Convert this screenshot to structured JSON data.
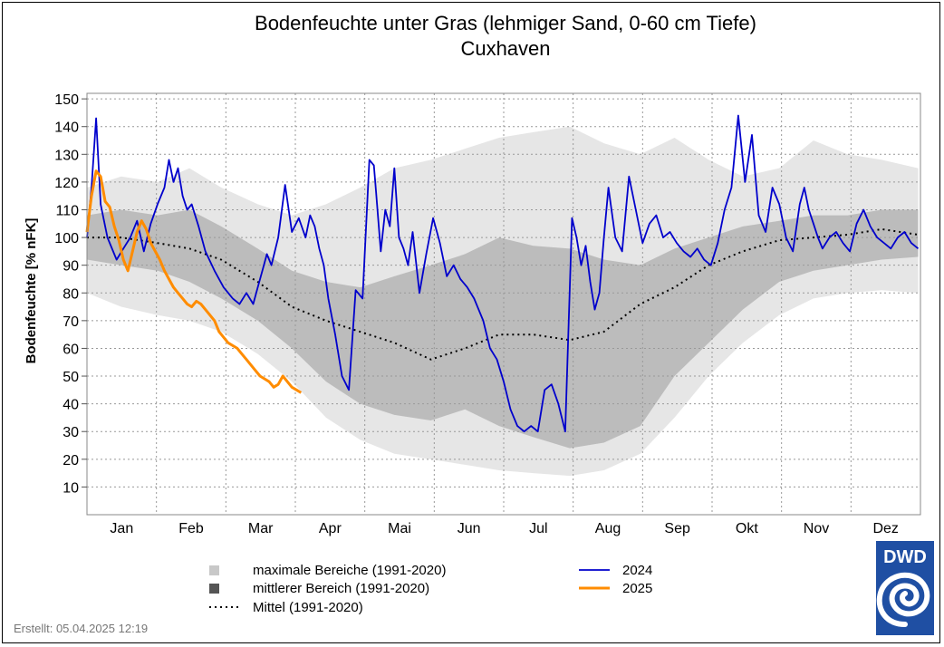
{
  "chart_data": {
    "type": "line",
    "title": "Bodenfeuchte unter Gras (lehmiger Sand, 0-60 cm Tiefe)",
    "subtitle": "Cuxhaven",
    "ylabel": "Bodenfeuchte [% nFK]",
    "xlabel": "",
    "ylim": [
      0,
      152
    ],
    "xlim": [
      0,
      366
    ],
    "yticks": [
      10,
      20,
      30,
      40,
      50,
      60,
      70,
      80,
      90,
      100,
      110,
      120,
      130,
      140,
      150
    ],
    "months": [
      "Jan",
      "Feb",
      "Mar",
      "Apr",
      "Mai",
      "Jun",
      "Jul",
      "Aug",
      "Sep",
      "Okt",
      "Nov",
      "Dez"
    ],
    "grid": "dotted",
    "legend_position": "bottom",
    "created": "Erstellt:  05.04.2025 12:19",
    "logo": "DWD",
    "colors": {
      "max_range": "#e6e6e6",
      "mid_range": "#bcbcbc",
      "mean": "#000000",
      "y2024": "#0000cc",
      "y2025": "#ff8c00",
      "logo_bg": "#1f4fa3"
    },
    "legend": [
      {
        "label": "maximale Bereiche (1991-2020)",
        "kind": "box",
        "color": "#c8c8c8"
      },
      {
        "label": "mittlerer Bereich (1991-2020)",
        "kind": "box",
        "color": "#555555"
      },
      {
        "label": "Mittel (1991-2020)",
        "kind": "dots",
        "color": "#000000"
      },
      {
        "label": "2024",
        "kind": "line",
        "color": "#0000cc"
      },
      {
        "label": "2025",
        "kind": "line",
        "color": "#ff8c00"
      }
    ],
    "bands": {
      "x": [
        0,
        15,
        31,
        45,
        59,
        75,
        90,
        105,
        120,
        135,
        151,
        166,
        181,
        196,
        212,
        227,
        243,
        258,
        273,
        288,
        304,
        319,
        334,
        349,
        365
      ],
      "max_low": [
        80,
        75,
        72,
        70,
        66,
        58,
        48,
        35,
        27,
        22,
        20,
        18,
        16,
        15,
        14,
        16,
        22,
        35,
        50,
        62,
        72,
        78,
        80,
        81,
        80
      ],
      "max_high": [
        118,
        122,
        120,
        125,
        118,
        112,
        108,
        112,
        118,
        125,
        128,
        132,
        136,
        138,
        140,
        134,
        130,
        136,
        128,
        122,
        125,
        135,
        130,
        128,
        125
      ],
      "mid_low": [
        92,
        90,
        88,
        84,
        78,
        70,
        60,
        48,
        40,
        36,
        34,
        38,
        32,
        28,
        24,
        26,
        32,
        50,
        62,
        74,
        84,
        88,
        90,
        92,
        93
      ],
      "mid_high": [
        108,
        110,
        108,
        110,
        104,
        96,
        88,
        84,
        82,
        86,
        90,
        94,
        100,
        97,
        96,
        92,
        90,
        96,
        100,
        104,
        106,
        108,
        108,
        110,
        110
      ],
      "mean": [
        100,
        100,
        98,
        96,
        92,
        84,
        75,
        70,
        66,
        62,
        56,
        60,
        65,
        65,
        63,
        66,
        76,
        82,
        90,
        95,
        99,
        100,
        101,
        103,
        101
      ]
    },
    "series": [
      {
        "name": "2024",
        "x": [
          0,
          2,
          4,
          6,
          9,
          13,
          16,
          19,
          22,
          25,
          28,
          31,
          34,
          36,
          38,
          40,
          42,
          44,
          46,
          49,
          52,
          56,
          60,
          64,
          67,
          70,
          73,
          75,
          77,
          79,
          81,
          84,
          87,
          90,
          93,
          96,
          98,
          100,
          102,
          104,
          106,
          109,
          112,
          115,
          118,
          121,
          124,
          126,
          127,
          129,
          131,
          133,
          135,
          137,
          139,
          141,
          143,
          146,
          149,
          152,
          155,
          158,
          161,
          164,
          167,
          170,
          174,
          177,
          180,
          183,
          186,
          189,
          192,
          195,
          198,
          201,
          204,
          207,
          210,
          213,
          215,
          217,
          219,
          221,
          223,
          225,
          227,
          229,
          232,
          235,
          238,
          241,
          244,
          247,
          250,
          253,
          256,
          259,
          262,
          265,
          268,
          271,
          274,
          277,
          280,
          283,
          286,
          289,
          292,
          295,
          298,
          301,
          304,
          307,
          310,
          313,
          315,
          317,
          319,
          321,
          323,
          326,
          329,
          332,
          335,
          338,
          341,
          344,
          347,
          350,
          353,
          356,
          359,
          362,
          365
        ],
        "values": [
          100,
          118,
          143,
          112,
          100,
          92,
          96,
          100,
          106,
          95,
          105,
          112,
          118,
          128,
          120,
          125,
          115,
          110,
          112,
          104,
          95,
          88,
          82,
          78,
          76,
          80,
          76,
          82,
          88,
          94,
          90,
          100,
          119,
          102,
          107,
          100,
          108,
          104,
          96,
          90,
          78,
          65,
          50,
          45,
          81,
          78,
          128,
          126,
          116,
          95,
          110,
          104,
          125,
          100,
          96,
          90,
          102,
          80,
          94,
          107,
          98,
          86,
          90,
          85,
          82,
          78,
          70,
          60,
          56,
          48,
          38,
          32,
          30,
          32,
          30,
          45,
          47,
          40,
          30,
          107,
          100,
          90,
          97,
          84,
          74,
          80,
          100,
          118,
          100,
          95,
          122,
          110,
          98,
          105,
          108,
          100,
          102,
          98,
          95,
          93,
          96,
          92,
          90,
          98,
          110,
          118,
          144,
          120,
          137,
          108,
          102,
          118,
          112,
          100,
          95,
          112,
          118,
          110,
          105,
          100,
          96,
          100,
          102,
          98,
          95,
          105,
          110,
          104,
          100,
          98,
          96,
          100,
          102,
          98,
          96
        ]
      },
      {
        "name": "2025",
        "x": [
          0,
          2,
          4,
          6,
          8,
          10,
          12,
          14,
          16,
          18,
          20,
          22,
          24,
          26,
          28,
          30,
          32,
          34,
          36,
          38,
          40,
          42,
          44,
          46,
          48,
          50,
          52,
          54,
          56,
          58,
          60,
          62,
          64,
          66,
          68,
          70,
          72,
          74,
          76,
          78,
          80,
          82,
          84,
          86,
          88,
          90,
          92,
          94
        ],
        "values": [
          102,
          115,
          124,
          122,
          113,
          111,
          104,
          99,
          92,
          88,
          95,
          102,
          106,
          103,
          98,
          95,
          92,
          88,
          85,
          82,
          80,
          78,
          76,
          75,
          77,
          76,
          74,
          72,
          70,
          66,
          64,
          62,
          61,
          60,
          58,
          56,
          54,
          52,
          50,
          49,
          48,
          46,
          47,
          50,
          48,
          46,
          45,
          44
        ]
      }
    ]
  }
}
